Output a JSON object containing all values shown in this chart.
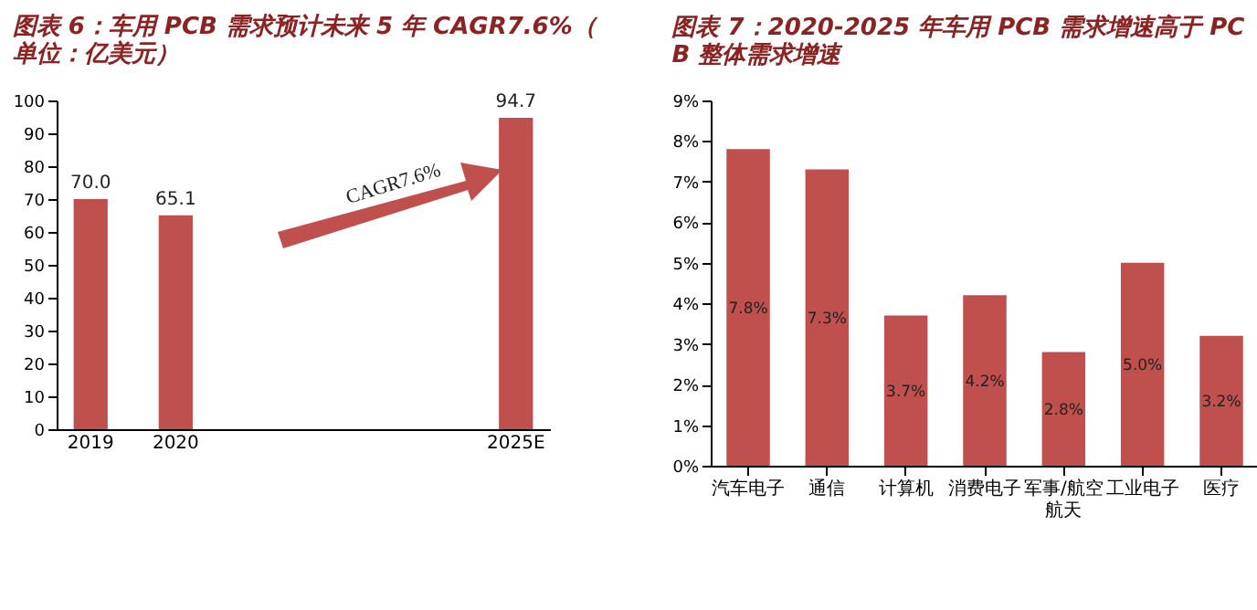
{
  "chart_data": [
    {
      "type": "bar",
      "title": "图表 6：车用 PCB 需求预计未来 5 年 CAGR7.6%（单位：亿美元）",
      "categories": [
        "2019",
        "2020",
        null,
        null,
        null,
        "2025E"
      ],
      "values": [
        70.0,
        65.1,
        null,
        null,
        null,
        94.7
      ],
      "value_labels": [
        "70.0",
        "65.1",
        null,
        null,
        null,
        "94.7"
      ],
      "color": "#c0504d",
      "ylim": [
        0,
        100
      ],
      "yticks": [
        0,
        10,
        20,
        30,
        40,
        50,
        60,
        70,
        80,
        90,
        100
      ],
      "grid": false,
      "annotations": [
        "CAGR7.6%"
      ]
    },
    {
      "type": "bar",
      "title": "图表 7：2020-2025 年车用 PCB 需求增速高于 PCB 整体需求增速",
      "categories": [
        "汽车电子",
        "通信",
        "计算机",
        "消费电子",
        "军事/航空航天",
        "工业电子",
        "医疗"
      ],
      "values": [
        7.8,
        7.3,
        3.7,
        4.2,
        2.8,
        5.0,
        3.2
      ],
      "value_labels": [
        "7.8%",
        "7.3%",
        "3.7%",
        "4.2%",
        "2.8%",
        "5.0%",
        "3.2%"
      ],
      "color": "#c0504d",
      "ylim": [
        0,
        9
      ],
      "yticks": [
        {
          "value": 0,
          "label": "0%"
        },
        {
          "value": 1,
          "label": "1%"
        },
        {
          "value": 2,
          "label": "2%"
        },
        {
          "value": 3,
          "label": "3%"
        },
        {
          "value": 4,
          "label": "4%"
        },
        {
          "value": 5,
          "label": "5%"
        },
        {
          "value": 6,
          "label": "6%"
        },
        {
          "value": 7,
          "label": "7%"
        },
        {
          "value": 8,
          "label": "8%"
        },
        {
          "value": 9,
          "label": "9%"
        }
      ],
      "grid": false
    }
  ]
}
